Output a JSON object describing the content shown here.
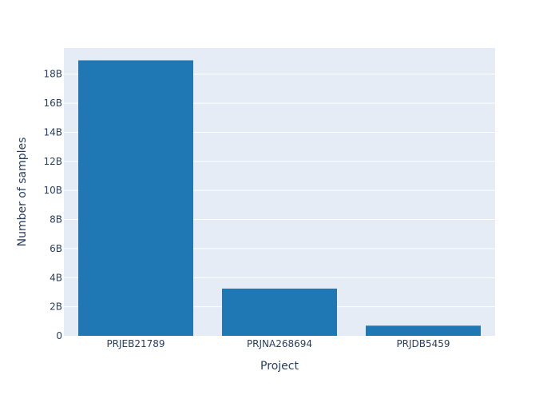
{
  "chart_data": {
    "type": "bar",
    "title": "",
    "xlabel": "Project",
    "ylabel": "Number of samples",
    "categories": [
      "PRJEB21789",
      "PRJNA268694",
      "PRJDB5459"
    ],
    "values": [
      18950000000,
      3250000000,
      700000000
    ],
    "ylim": [
      0,
      19800000000
    ],
    "yticks": [
      {
        "value": 0,
        "label": "0"
      },
      {
        "value": 2000000000,
        "label": "2B"
      },
      {
        "value": 4000000000,
        "label": "4B"
      },
      {
        "value": 6000000000,
        "label": "6B"
      },
      {
        "value": 8000000000,
        "label": "8B"
      },
      {
        "value": 10000000000,
        "label": "10B"
      },
      {
        "value": 12000000000,
        "label": "12B"
      },
      {
        "value": 14000000000,
        "label": "14B"
      },
      {
        "value": 16000000000,
        "label": "16B"
      },
      {
        "value": 18000000000,
        "label": "18B"
      }
    ],
    "grid": true,
    "legend": "none",
    "colors": {
      "bar": "#1f77b4",
      "plot_background": "#e5ecf6",
      "gridline": "#ffffff",
      "text": "#2a3f5f"
    }
  }
}
